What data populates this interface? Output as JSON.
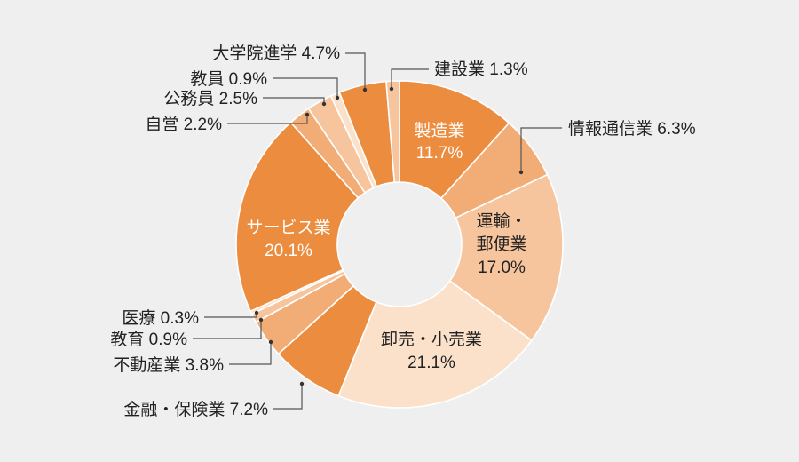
{
  "chart_data": {
    "type": "pie",
    "variant": "donut",
    "title": "",
    "legend": "none",
    "start_angle_deg": 0,
    "direction": "clockwise",
    "slices": [
      {
        "name": "製造業",
        "value": 11.7,
        "value_label": "11.7%",
        "color": "#eb8c3f",
        "label_position": "inside",
        "text_color": "#ffffff"
      },
      {
        "name": "情報通信業",
        "value": 6.3,
        "value_label": "6.3%",
        "color": "#f2ad76",
        "label_position": "outside"
      },
      {
        "name": "運輸・郵便業",
        "value": 17.0,
        "value_label": "17.0%",
        "color": "#f6c59e",
        "label_position": "inside",
        "text_color": "#222222",
        "label_lines": [
          "運輸・",
          "郵便業",
          "17.0%"
        ]
      },
      {
        "name": "卸売・小売業",
        "value": 21.1,
        "value_label": "21.1%",
        "color": "#fbe1c9",
        "label_position": "inside",
        "text_color": "#222222"
      },
      {
        "name": "金融・保険業",
        "value": 7.2,
        "value_label": "7.2%",
        "color": "#eb8c3f",
        "label_position": "outside"
      },
      {
        "name": "不動産業",
        "value": 3.8,
        "value_label": "3.8%",
        "color": "#f2ad76",
        "label_position": "outside"
      },
      {
        "name": "教育",
        "value": 0.9,
        "value_label": "0.9%",
        "color": "#f6c59e",
        "label_position": "outside"
      },
      {
        "name": "医療",
        "value": 0.3,
        "value_label": "0.3%",
        "color": "#fbe1c9",
        "label_position": "outside"
      },
      {
        "name": "サービス業",
        "value": 20.1,
        "value_label": "20.1%",
        "color": "#eb8c3f",
        "label_position": "inside",
        "text_color": "#ffffff"
      },
      {
        "name": "自営",
        "value": 2.2,
        "value_label": "2.2%",
        "color": "#f2ad76",
        "label_position": "outside"
      },
      {
        "name": "公務員",
        "value": 2.5,
        "value_label": "2.5%",
        "color": "#f6c59e",
        "label_position": "outside"
      },
      {
        "name": "教員",
        "value": 0.9,
        "value_label": "0.9%",
        "color": "#fbe1c9",
        "label_position": "outside"
      },
      {
        "name": "大学院進学",
        "value": 4.7,
        "value_label": "4.7%",
        "color": "#eb8c3f",
        "label_position": "outside"
      },
      {
        "name": "建設業",
        "value": 1.3,
        "value_label": "1.3%",
        "color": "#f6c59e",
        "label_position": "outside"
      }
    ]
  }
}
